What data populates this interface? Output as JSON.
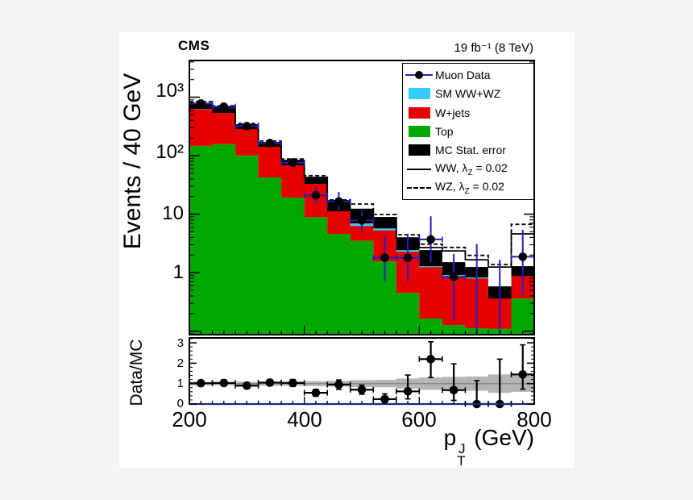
{
  "header": {
    "experiment": "CMS",
    "lumi": "19 fb⁻¹ (8 TeV)"
  },
  "chart_data": {
    "type": "stacked-histogram-with-ratio",
    "ylabel": "Events / 40 GeV",
    "ratio_ylabel": "Data/MC",
    "xlabel_parts": {
      "base": "p",
      "sup": "J",
      "sub": "T",
      "rest": " (GeV)"
    },
    "xlim": [
      200,
      800
    ],
    "ylim": [
      0.087,
      4245
    ],
    "y_log": true,
    "ratio_ylim": [
      0,
      3.24
    ],
    "bin_width_gev": 40,
    "x_ticks": [
      {
        "value": 200,
        "label": "200"
      },
      {
        "value": 400,
        "label": "400"
      },
      {
        "value": 600,
        "label": "600"
      },
      {
        "value": 800,
        "label": "800"
      }
    ],
    "y_ticks": [
      {
        "value": 1000,
        "label": "10³"
      },
      {
        "value": 100,
        "label": "10²"
      },
      {
        "value": 10,
        "label": "10"
      },
      {
        "value": 1,
        "label": "1"
      }
    ],
    "ratio_ticks": [
      {
        "value": 3,
        "label": "3"
      },
      {
        "value": 2,
        "label": "2"
      },
      {
        "value": 1,
        "label": "1"
      },
      {
        "value": 0,
        "label": "0"
      }
    ],
    "bin_centers": [
      220,
      260,
      300,
      340,
      380,
      420,
      460,
      500,
      540,
      580,
      620,
      660,
      700,
      740,
      780
    ],
    "series": {
      "top": {
        "label": "Top",
        "color": "#00a800",
        "values": [
          147,
          157,
          101,
          42.5,
          19.2,
          8.9,
          4.6,
          3.5,
          1.55,
          0.45,
          0.164,
          0.127,
          0.112,
          0.109,
          0.362
        ]
      },
      "wjets": {
        "label": "W+jets",
        "color": "#e60000",
        "stack_top": [
          625,
          540,
          294,
          144,
          71.6,
          35,
          12.7,
          6.3,
          5.3,
          2.28,
          1.25,
          0.85,
          0.8,
          0.385,
          0.957
        ]
      },
      "sm_ww_wz": {
        "label": "SM WW+WZ",
        "color": "#33ccff",
        "stack_top": [
          684,
          583,
          317,
          156,
          77.5,
          37.9,
          14.0,
          6.8,
          5.7,
          2.47,
          1.33,
          0.91,
          0.85,
          0.404,
          1.03
        ]
      },
      "mc_stat": {
        "label": "MC Stat. error",
        "color": "#000000",
        "lo": [
          631,
          538,
          285,
          142,
          68.5,
          33,
          11.2,
          6.9,
          5.7,
          2.43,
          1.29,
          0.91,
          0.83,
          0.362,
          0.88
        ],
        "hi": [
          764,
          650,
          345,
          172,
          82.7,
          42.5,
          16.4,
          12.3,
          8.9,
          3.92,
          2.43,
          1.51,
          1.25,
          0.583,
          1.29
        ]
      },
      "ww_signal": {
        "label_pre": "WW, λ",
        "label_sub": "Z",
        "label_post": " = 0.02",
        "style": "solid",
        "values": [
          785,
          672,
          335,
          167,
          82.7,
          42.5,
          16.9,
          12.1,
          8.7,
          3.92,
          2.68,
          2.36,
          1.66,
          1.25,
          4.6
        ]
      },
      "wz_signal": {
        "label_pre": "WZ, λ",
        "label_sub": "Z",
        "label_post": " = 0.02",
        "style": "dashed",
        "values": [
          840,
          716,
          355,
          178,
          88,
          45.5,
          17.5,
          14.9,
          9.9,
          4.45,
          3.07,
          2.7,
          1.97,
          1.38,
          6.7
        ]
      },
      "data": {
        "label": "Muon Data",
        "marker_color": "#000000",
        "error_color": "#2222bb",
        "values": [
          780,
          690,
          320,
          164,
          76,
          21,
          16.5,
          7.8,
          1.8,
          1.8,
          3.7,
          0.85,
          null,
          null,
          1.87
        ],
        "err_lo": [
          700,
          625,
          285,
          142,
          62,
          15.3,
          11.9,
          5.0,
          0.72,
          0.72,
          1.51,
          0.15,
          0.087,
          0.087,
          0.42
        ],
        "err_hi": [
          880,
          770,
          365,
          189,
          91,
          28.1,
          23.9,
          11.2,
          4.35,
          4.35,
          9.2,
          2.1,
          3.1,
          1.66,
          5.4
        ]
      }
    },
    "ratio": {
      "values": [
        1.02,
        1.03,
        0.9,
        1.05,
        1.03,
        0.55,
        0.95,
        0.7,
        0.24,
        0.62,
        2.2,
        0.68,
        0,
        0,
        1.45
      ],
      "err_lo": [
        0.88,
        0.9,
        0.76,
        0.9,
        0.86,
        0.38,
        0.72,
        0.48,
        0.05,
        0.25,
        1.3,
        0.18,
        0,
        0,
        0.73
      ],
      "err_hi": [
        1.16,
        1.18,
        1.04,
        1.2,
        1.2,
        0.72,
        1.18,
        0.93,
        0.5,
        1.42,
        3.05,
        1.97,
        1.15,
        2.2,
        2.9
      ],
      "band_half": [
        0.08,
        0.08,
        0.09,
        0.1,
        0.11,
        0.12,
        0.14,
        0.17,
        0.18,
        0.25,
        0.3,
        0.33,
        0.35,
        0.45,
        0.4
      ],
      "unity_line_color": "#8a8a8a"
    }
  },
  "legend": {
    "entries": [
      {
        "name": "muon-data",
        "type": "data",
        "label": "Muon Data"
      },
      {
        "name": "sm-ww-wz",
        "type": "box",
        "color": "#33ccff",
        "label": "SM WW+WZ"
      },
      {
        "name": "w-jets",
        "type": "box",
        "color": "#e60000",
        "label": "W+jets"
      },
      {
        "name": "top",
        "type": "box",
        "color": "#00a800",
        "label": "Top"
      },
      {
        "name": "mc-stat-error",
        "type": "box",
        "color": "#000000",
        "label": "MC Stat. error"
      },
      {
        "name": "ww-lambda",
        "type": "line",
        "label_pre": "WW, λ",
        "label_sub": "Z",
        "label_post": " = 0.02"
      },
      {
        "name": "wz-lambda",
        "type": "dashed",
        "label_pre": "WZ, λ",
        "label_sub": "Z",
        "label_post": " = 0.02"
      }
    ]
  }
}
